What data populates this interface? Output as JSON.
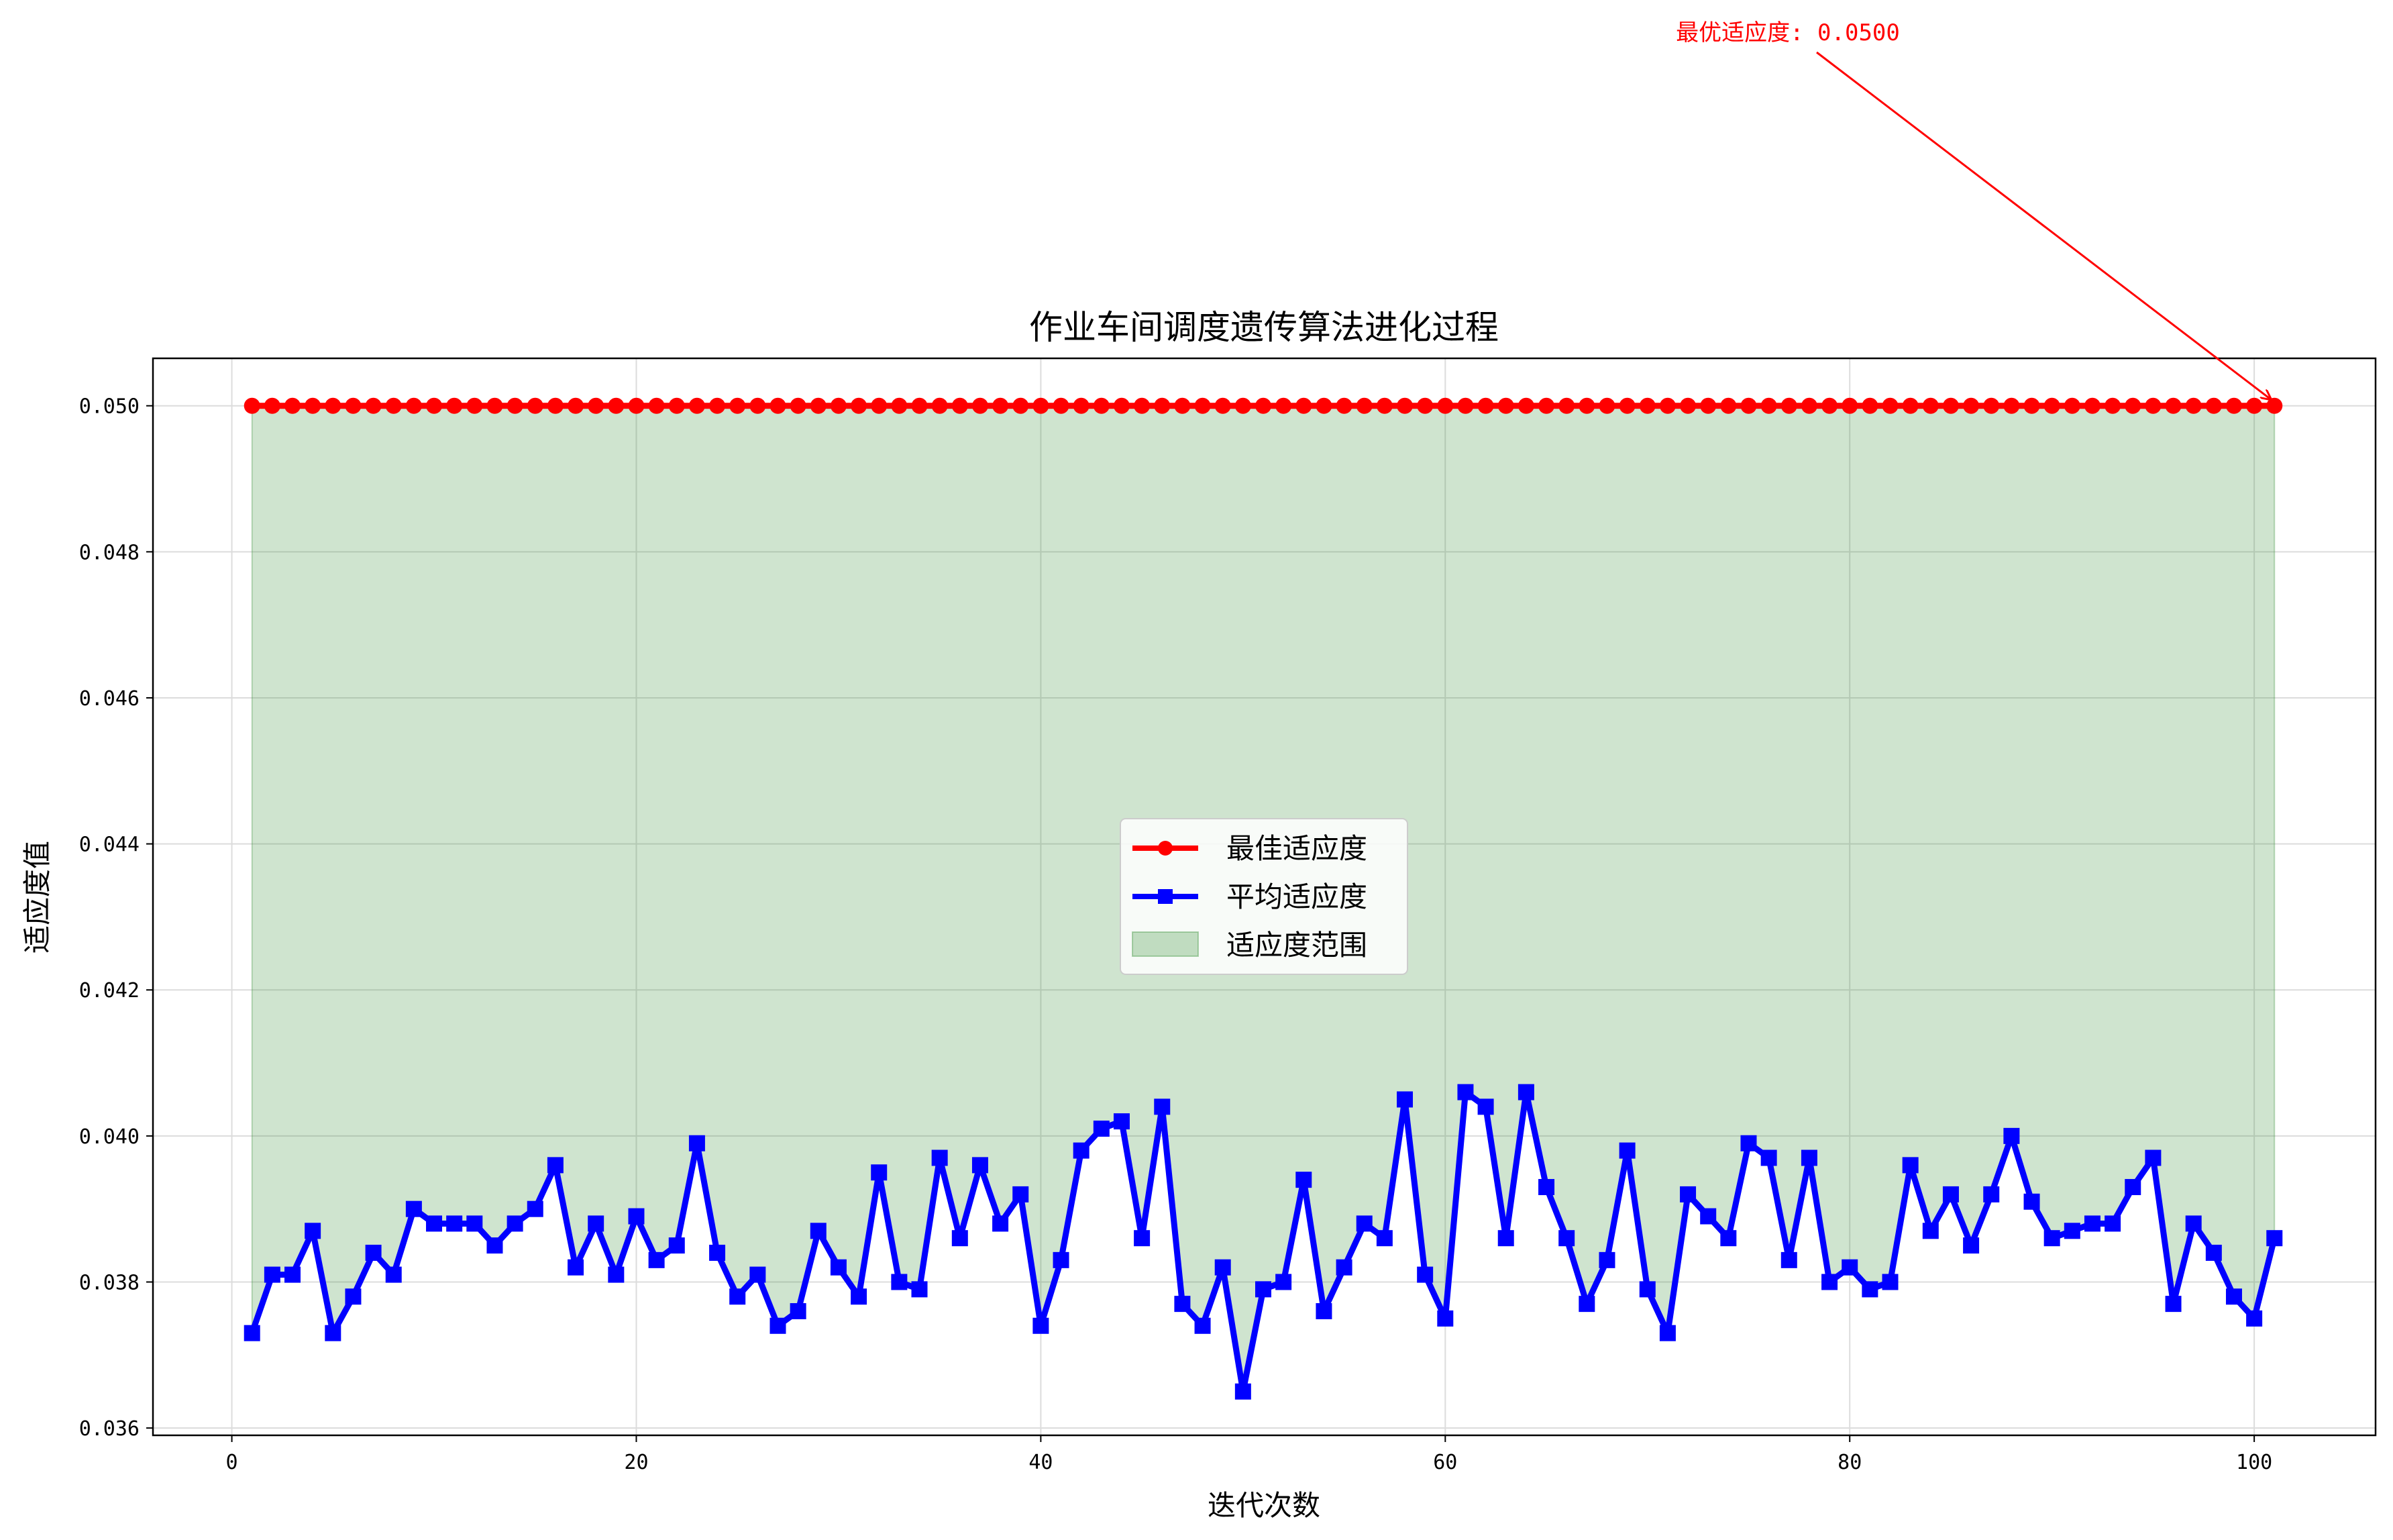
{
  "chart_data": {
    "type": "line",
    "title": "作业车间调度遗传算法进化过程",
    "xlabel": "迭代次数",
    "ylabel": "适应度值",
    "xlim": [
      -3.9,
      106
    ],
    "ylim": [
      0.0359,
      0.05065
    ],
    "x_ticks": [
      0,
      20,
      40,
      60,
      80,
      100
    ],
    "x_tick_labels": [
      "0",
      "20",
      "40",
      "60",
      "80",
      "100"
    ],
    "y_ticks": [
      0.036,
      0.038,
      0.04,
      0.042,
      0.044,
      0.046,
      0.048,
      0.05
    ],
    "y_tick_labels": [
      "0.036",
      "0.038",
      "0.040",
      "0.042",
      "0.044",
      "0.046",
      "0.048",
      "0.050"
    ],
    "grid": true,
    "legend_position": "center",
    "x": [
      1,
      2,
      3,
      4,
      5,
      6,
      7,
      8,
      9,
      10,
      11,
      12,
      13,
      14,
      15,
      16,
      17,
      18,
      19,
      20,
      21,
      22,
      23,
      24,
      25,
      26,
      27,
      28,
      29,
      30,
      31,
      32,
      33,
      34,
      35,
      36,
      37,
      38,
      39,
      40,
      41,
      42,
      43,
      44,
      45,
      46,
      47,
      48,
      49,
      50,
      51,
      52,
      53,
      54,
      55,
      56,
      57,
      58,
      59,
      60,
      61,
      62,
      63,
      64,
      65,
      66,
      67,
      68,
      69,
      70,
      71,
      72,
      73,
      74,
      75,
      76,
      77,
      78,
      79,
      80,
      81,
      82,
      83,
      84,
      85,
      86,
      87,
      88,
      89,
      90,
      91,
      92,
      93,
      94,
      95,
      96,
      97,
      98,
      99,
      100,
      101
    ],
    "series": [
      {
        "name": "最佳适应度",
        "color": "#ff0000",
        "marker": "circle",
        "values": [
          0.05,
          0.05,
          0.05,
          0.05,
          0.05,
          0.05,
          0.05,
          0.05,
          0.05,
          0.05,
          0.05,
          0.05,
          0.05,
          0.05,
          0.05,
          0.05,
          0.05,
          0.05,
          0.05,
          0.05,
          0.05,
          0.05,
          0.05,
          0.05,
          0.05,
          0.05,
          0.05,
          0.05,
          0.05,
          0.05,
          0.05,
          0.05,
          0.05,
          0.05,
          0.05,
          0.05,
          0.05,
          0.05,
          0.05,
          0.05,
          0.05,
          0.05,
          0.05,
          0.05,
          0.05,
          0.05,
          0.05,
          0.05,
          0.05,
          0.05,
          0.05,
          0.05,
          0.05,
          0.05,
          0.05,
          0.05,
          0.05,
          0.05,
          0.05,
          0.05,
          0.05,
          0.05,
          0.05,
          0.05,
          0.05,
          0.05,
          0.05,
          0.05,
          0.05,
          0.05,
          0.05,
          0.05,
          0.05,
          0.05,
          0.05,
          0.05,
          0.05,
          0.05,
          0.05,
          0.05,
          0.05,
          0.05,
          0.05,
          0.05,
          0.05,
          0.05,
          0.05,
          0.05,
          0.05,
          0.05,
          0.05,
          0.05,
          0.05,
          0.05,
          0.05,
          0.05,
          0.05,
          0.05,
          0.05,
          0.05,
          0.05
        ]
      },
      {
        "name": "平均适应度",
        "color": "#0000ff",
        "marker": "square",
        "values": [
          0.0373,
          0.0381,
          0.0381,
          0.0387,
          0.0373,
          0.0378,
          0.0384,
          0.0381,
          0.039,
          0.0388,
          0.0388,
          0.0388,
          0.0385,
          0.0388,
          0.039,
          0.0396,
          0.0382,
          0.0388,
          0.0381,
          0.0389,
          0.0383,
          0.0385,
          0.0399,
          0.0384,
          0.0378,
          0.0381,
          0.0374,
          0.0376,
          0.0387,
          0.0382,
          0.0378,
          0.0395,
          0.038,
          0.0379,
          0.0397,
          0.0386,
          0.0396,
          0.0388,
          0.0392,
          0.0374,
          0.0383,
          0.0398,
          0.0401,
          0.0402,
          0.0386,
          0.0404,
          0.0377,
          0.0374,
          0.0382,
          0.0365,
          0.0379,
          0.038,
          0.0394,
          0.0376,
          0.0382,
          0.0388,
          0.0386,
          0.0405,
          0.0381,
          0.0375,
          0.0406,
          0.0404,
          0.0386,
          0.0406,
          0.0393,
          0.0386,
          0.0377,
          0.0383,
          0.0398,
          0.0379,
          0.0373,
          0.0392,
          0.0389,
          0.0386,
          0.0399,
          0.0397,
          0.0383,
          0.0397,
          0.038,
          0.0382,
          0.0379,
          0.038,
          0.0396,
          0.0387,
          0.0392,
          0.0385,
          0.0392,
          0.04,
          0.0391,
          0.0386,
          0.0387,
          0.0388,
          0.0388,
          0.0393,
          0.0397,
          0.0377,
          0.0388,
          0.0384,
          0.0378,
          0.0375,
          0.0386
        ]
      }
    ],
    "fill_between": {
      "name": "适应度范围",
      "color": "#2e8b2e",
      "opacity": 0.23,
      "lower_series": "平均适应度",
      "upper_series": "最佳适应度"
    },
    "annotation": {
      "text": "最优适应度: 0.0500",
      "color": "#ff0000",
      "target": {
        "x": 101,
        "y": 0.05
      }
    }
  }
}
